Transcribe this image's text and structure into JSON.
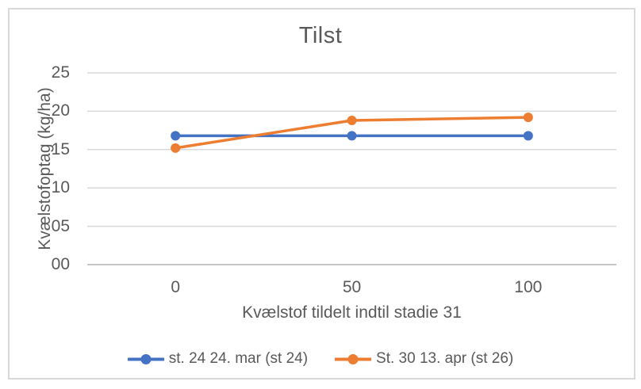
{
  "chart_data": {
    "type": "line",
    "title": "Tilst",
    "xlabel": "Kvælstof tildelt indtil stadie 31",
    "ylabel": "Kvælstofoptag (kg/ha)",
    "categories": [
      "0",
      "50",
      "100"
    ],
    "series": [
      {
        "name": "st. 24 24. mar (st 24)",
        "color": "#4472C4",
        "values": [
          16.8,
          16.8,
          16.8
        ]
      },
      {
        "name": "St. 30 13. apr (st 26)",
        "color": "#ED7D31",
        "values": [
          15.2,
          18.8,
          19.2
        ]
      }
    ],
    "ylim": [
      0,
      25
    ],
    "y_tick_step": 5,
    "y_tick_labels": [
      "00",
      "05",
      "10",
      "15",
      "20",
      "25"
    ],
    "grid": true,
    "legend_position": "bottom",
    "marker_style": "circle",
    "colors": {
      "gridline": "#D9D9D9",
      "axis_line": "#BFBFBF",
      "text": "#595959",
      "frame_border": "#D9D9D9",
      "background": "#FFFFFF"
    }
  }
}
